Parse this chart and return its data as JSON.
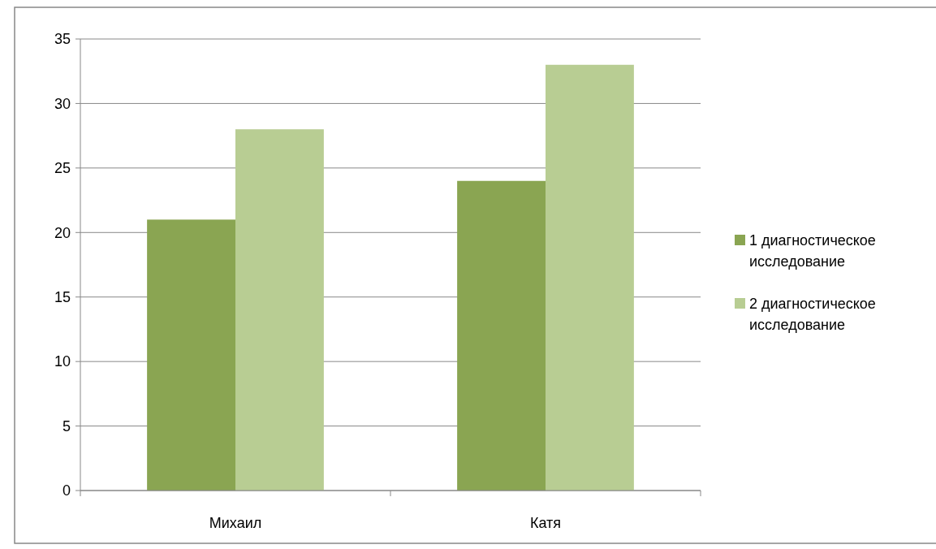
{
  "chart_data": {
    "type": "bar",
    "categories": [
      "Михаил",
      "Катя"
    ],
    "series": [
      {
        "name": "1 диагностическое исследование",
        "color": "#8aa552",
        "values": [
          21,
          24
        ]
      },
      {
        "name": "2 диагностическое исследование",
        "color": "#b8cd93",
        "values": [
          28,
          33
        ]
      }
    ],
    "ylim": [
      0,
      35
    ],
    "yticks": [
      0,
      5,
      10,
      15,
      20,
      25,
      30,
      35
    ],
    "grid": "y",
    "legend": "right"
  }
}
